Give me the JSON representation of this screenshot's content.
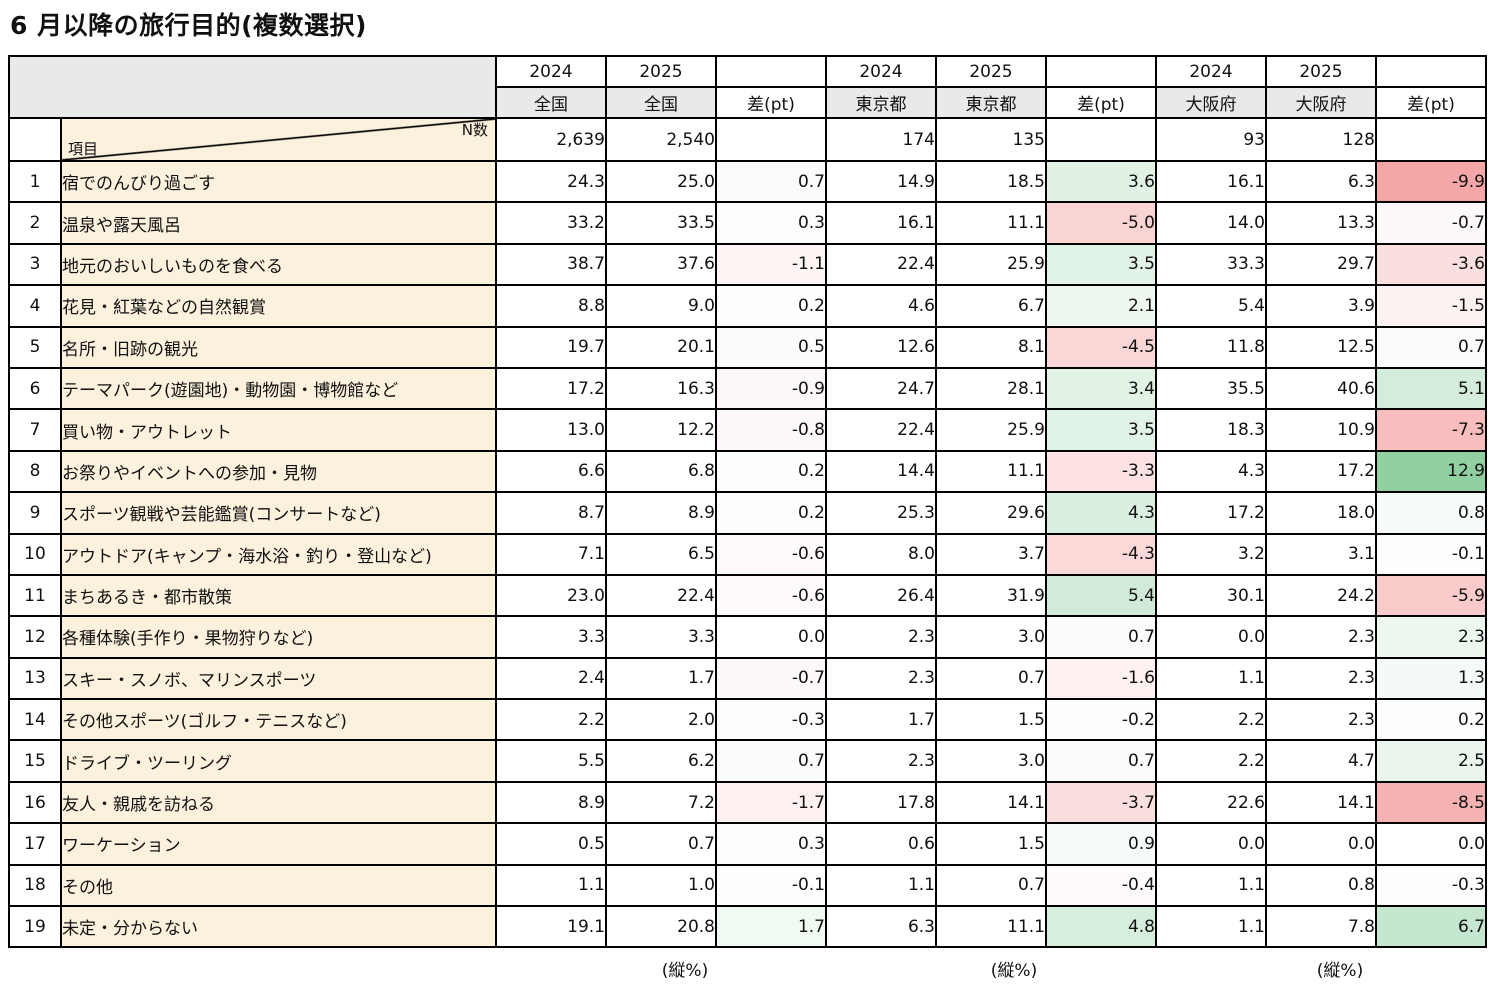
{
  "title": "6 月以降の旅行目的(複数選択)",
  "table": {
    "corner_n_label": "N数",
    "corner_item_label": "項目",
    "footer_note": "(縦%)",
    "groups": [
      {
        "region": "全国",
        "years": [
          "2024",
          "2025"
        ],
        "diff_label": "差(pt)",
        "n": [
          "2,639",
          "2,540"
        ]
      },
      {
        "region": "東京都",
        "years": [
          "2024",
          "2025"
        ],
        "diff_label": "差(pt)",
        "n": [
          "174",
          "135"
        ]
      },
      {
        "region": "大阪府",
        "years": [
          "2024",
          "2025"
        ],
        "diff_label": "差(pt)",
        "n": [
          "93",
          "128"
        ]
      }
    ],
    "rows": [
      {
        "no": 1,
        "label": "宿でのんびり過ごす",
        "values": [
          24.3,
          25.0,
          0.7,
          14.9,
          18.5,
          3.6,
          16.1,
          6.3,
          -9.9
        ]
      },
      {
        "no": 2,
        "label": "温泉や露天風呂",
        "values": [
          33.2,
          33.5,
          0.3,
          16.1,
          11.1,
          -5.0,
          14.0,
          13.3,
          -0.7
        ]
      },
      {
        "no": 3,
        "label": "地元のおいしいものを食べる",
        "values": [
          38.7,
          37.6,
          -1.1,
          22.4,
          25.9,
          3.5,
          33.3,
          29.7,
          -3.6
        ]
      },
      {
        "no": 4,
        "label": "花見・紅葉などの自然観賞",
        "values": [
          8.8,
          9.0,
          0.2,
          4.6,
          6.7,
          2.1,
          5.4,
          3.9,
          -1.5
        ]
      },
      {
        "no": 5,
        "label": "名所・旧跡の観光",
        "values": [
          19.7,
          20.1,
          0.5,
          12.6,
          8.1,
          -4.5,
          11.8,
          12.5,
          0.7
        ]
      },
      {
        "no": 6,
        "label": "テーマパーク(遊園地)・動物園・博物館など",
        "values": [
          17.2,
          16.3,
          -0.9,
          24.7,
          28.1,
          3.4,
          35.5,
          40.6,
          5.1
        ]
      },
      {
        "no": 7,
        "label": "買い物・アウトレット",
        "values": [
          13.0,
          12.2,
          -0.8,
          22.4,
          25.9,
          3.5,
          18.3,
          10.9,
          -7.3
        ]
      },
      {
        "no": 8,
        "label": "お祭りやイベントへの参加・見物",
        "values": [
          6.6,
          6.8,
          0.2,
          14.4,
          11.1,
          -3.3,
          4.3,
          17.2,
          12.9
        ]
      },
      {
        "no": 9,
        "label": "スポーツ観戦や芸能鑑賞(コンサートなど)",
        "values": [
          8.7,
          8.9,
          0.2,
          25.3,
          29.6,
          4.3,
          17.2,
          18.0,
          0.8
        ]
      },
      {
        "no": 10,
        "label": "アウトドア(キャンプ・海水浴・釣り・登山など)",
        "values": [
          7.1,
          6.5,
          -0.6,
          8.0,
          3.7,
          -4.3,
          3.2,
          3.1,
          -0.1
        ]
      },
      {
        "no": 11,
        "label": "まちあるき・都市散策",
        "values": [
          23.0,
          22.4,
          -0.6,
          26.4,
          31.9,
          5.4,
          30.1,
          24.2,
          -5.9
        ]
      },
      {
        "no": 12,
        "label": "各種体験(手作り・果物狩りなど)",
        "values": [
          3.3,
          3.3,
          0.0,
          2.3,
          3.0,
          0.7,
          0.0,
          2.3,
          2.3
        ]
      },
      {
        "no": 13,
        "label": "スキー・スノボ、マリンスポーツ",
        "values": [
          2.4,
          1.7,
          -0.7,
          2.3,
          0.7,
          -1.6,
          1.1,
          2.3,
          1.3
        ]
      },
      {
        "no": 14,
        "label": "その他スポーツ(ゴルフ・テニスなど)",
        "values": [
          2.2,
          2.0,
          -0.3,
          1.7,
          1.5,
          -0.2,
          2.2,
          2.3,
          0.2
        ]
      },
      {
        "no": 15,
        "label": "ドライブ・ツーリング",
        "values": [
          5.5,
          6.2,
          0.7,
          2.3,
          3.0,
          0.7,
          2.2,
          4.7,
          2.5
        ]
      },
      {
        "no": 16,
        "label": "友人・親戚を訪ねる",
        "values": [
          8.9,
          7.2,
          -1.7,
          17.8,
          14.1,
          -3.7,
          22.6,
          14.1,
          -8.5
        ]
      },
      {
        "no": 17,
        "label": "ワーケーション",
        "values": [
          0.5,
          0.7,
          0.3,
          0.6,
          1.5,
          0.9,
          0.0,
          0.0,
          0.0
        ]
      },
      {
        "no": 18,
        "label": "その他",
        "values": [
          1.1,
          1.0,
          -0.1,
          1.1,
          0.7,
          -0.4,
          1.1,
          0.8,
          -0.3
        ]
      },
      {
        "no": 19,
        "label": "未定・分からない",
        "values": [
          19.1,
          20.8,
          1.7,
          6.3,
          11.1,
          4.8,
          1.1,
          7.8,
          6.7
        ]
      }
    ]
  },
  "colors": {
    "header_gray": "#e9e9e9",
    "label_cream": "#fcf1dc",
    "diff_green_max_color": "#92d0a2",
    "diff_red_max_color": "#f5a7a7",
    "diff_green_max_value": 12.9,
    "diff_red_max_value": 9.9
  }
}
